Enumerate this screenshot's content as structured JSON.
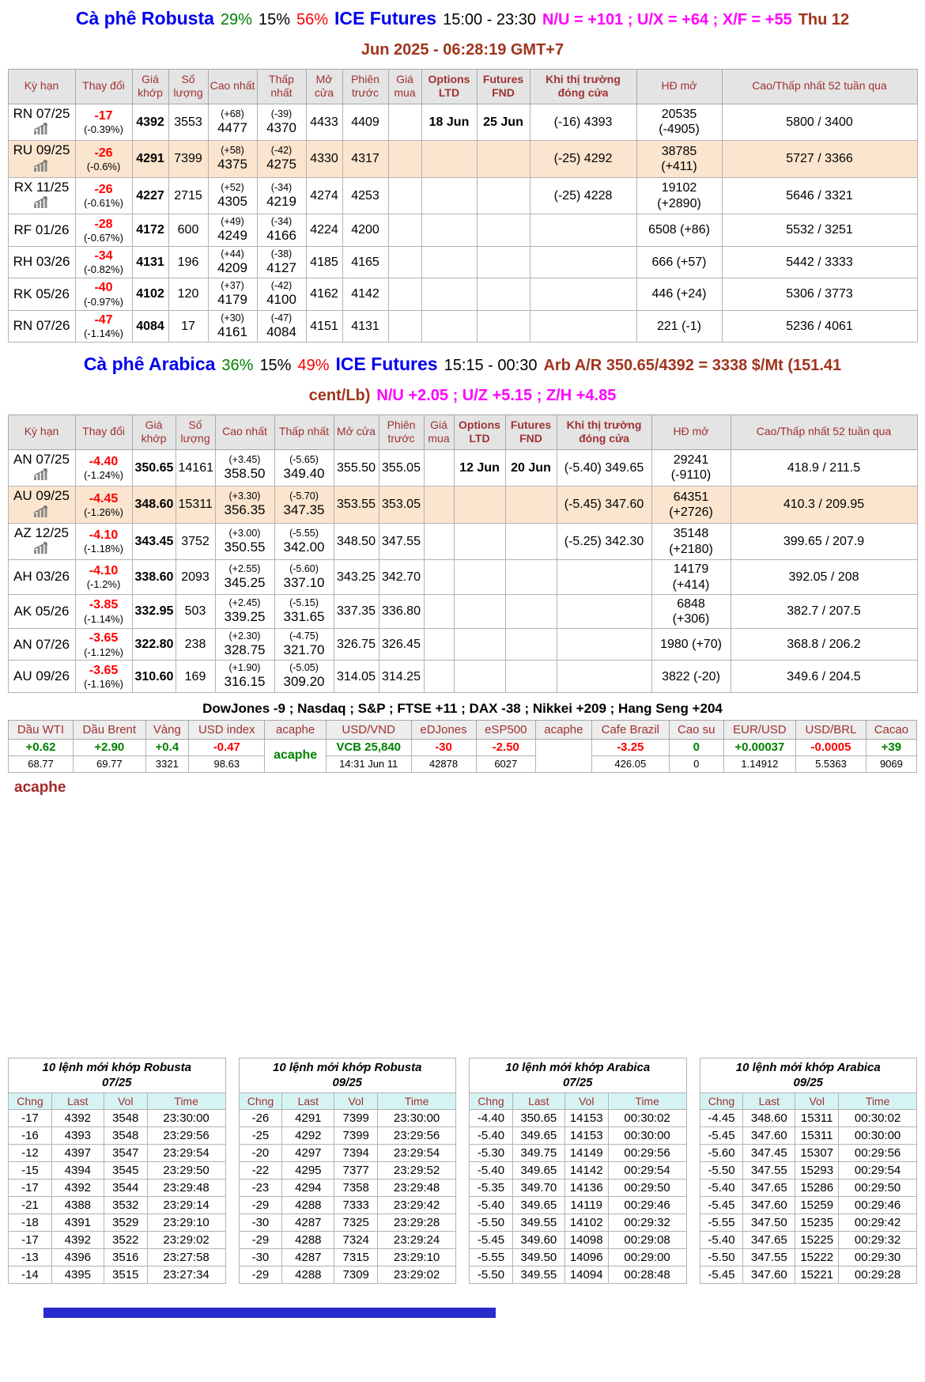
{
  "robusta_header": {
    "line1": [
      {
        "text": "Cà phê Robusta",
        "style": "blue"
      },
      {
        "text": "29%",
        "style": "green"
      },
      {
        "text": "15%",
        "style": "black"
      },
      {
        "text": "56%",
        "style": "red"
      },
      {
        "text": "ICE Futures",
        "style": "blue"
      },
      {
        "text": "15:00 - 23:30",
        "style": "black"
      },
      {
        "text": "N/U = +101 ; U/X = +64 ; X/F = +55",
        "style": "magenta"
      },
      {
        "text": "Thu 12",
        "style": "darkred"
      }
    ],
    "line2": [
      {
        "text": "Jun 2025 - 06:28:19 GMT+7",
        "style": "darkred"
      }
    ]
  },
  "arabica_header": {
    "line1": [
      {
        "text": "Cà phê Arabica",
        "style": "blue"
      },
      {
        "text": "36%",
        "style": "green"
      },
      {
        "text": "15%",
        "style": "black"
      },
      {
        "text": "49%",
        "style": "red"
      },
      {
        "text": "ICE Futures",
        "style": "blue"
      },
      {
        "text": "15:15 - 00:30",
        "style": "black"
      },
      {
        "text": "Arb A/R 350.65/4392 = 3338 $/Mt (151.41",
        "style": "darkred"
      }
    ],
    "line2": [
      {
        "text": "cent/Lb)",
        "style": "darkred"
      },
      {
        "text": "N/U +2.05 ; U/Z +5.15 ; Z/H +4.85",
        "style": "magenta"
      }
    ]
  },
  "futures_columns": [
    {
      "label": "Kỳ hạn",
      "bold": false
    },
    {
      "label": "Thay đổi",
      "bold": false
    },
    {
      "label": "Giá khớp",
      "bold": false
    },
    {
      "label": "Số lượng",
      "bold": false
    },
    {
      "label": "Cao nhất",
      "bold": false
    },
    {
      "label": "Thấp nhất",
      "bold": false
    },
    {
      "label": "Mở cửa",
      "bold": false
    },
    {
      "label": "Phiên trước",
      "bold": false
    },
    {
      "label": "Giá mua",
      "bold": false
    },
    {
      "label": "Options LTD",
      "bold": true
    },
    {
      "label": "Futures FND",
      "bold": true
    },
    {
      "label": "Khi thị trường đóng cửa",
      "bold": true
    },
    {
      "label": "HĐ mở",
      "bold": false
    },
    {
      "label": "Cao/Thấp nhất 52 tuần qua",
      "bold": false
    }
  ],
  "robusta_col_widths": [
    85,
    72,
    46,
    50,
    62,
    62,
    46,
    58,
    42,
    70,
    67,
    135,
    108,
    247
  ],
  "arabica_col_widths": [
    85,
    72,
    55,
    50,
    75,
    75,
    57,
    57,
    38,
    65,
    65,
    120,
    100,
    236
  ],
  "robusta_rows": [
    {
      "contract": "RN 07/25",
      "icon": true,
      "chg": "-17",
      "pct": "(-0.39%)",
      "last": "4392",
      "vol": "3553",
      "hi_d": "(+68)",
      "hi": "4477",
      "lo_d": "(-39)",
      "lo": "4370",
      "open": "4433",
      "prev": "4409",
      "bid": "",
      "oltd": "18 Jun",
      "fnd": "25 Jun",
      "close": "(-16) 4393",
      "oi": "20535 (-4905)",
      "range": "5800 / 3400",
      "hl": false
    },
    {
      "contract": "RU 09/25",
      "icon": true,
      "chg": "-26",
      "pct": "(-0.6%)",
      "last": "4291",
      "vol": "7399",
      "hi_d": "(+58)",
      "hi": "4375",
      "lo_d": "(-42)",
      "lo": "4275",
      "open": "4330",
      "prev": "4317",
      "bid": "",
      "oltd": "",
      "fnd": "",
      "close": "(-25) 4292",
      "oi": "38785 (+411)",
      "range": "5727 / 3366",
      "hl": true
    },
    {
      "contract": "RX 11/25",
      "icon": true,
      "chg": "-26",
      "pct": "(-0.61%)",
      "last": "4227",
      "vol": "2715",
      "hi_d": "(+52)",
      "hi": "4305",
      "lo_d": "(-34)",
      "lo": "4219",
      "open": "4274",
      "prev": "4253",
      "bid": "",
      "oltd": "",
      "fnd": "",
      "close": "(-25) 4228",
      "oi": "19102 (+2890)",
      "range": "5646 / 3321",
      "hl": false
    },
    {
      "contract": "RF 01/26",
      "icon": false,
      "chg": "-28",
      "pct": "(-0.67%)",
      "last": "4172",
      "vol": "600",
      "hi_d": "(+49)",
      "hi": "4249",
      "lo_d": "(-34)",
      "lo": "4166",
      "open": "4224",
      "prev": "4200",
      "bid": "",
      "oltd": "",
      "fnd": "",
      "close": "",
      "oi": "6508 (+86)",
      "range": "5532 / 3251",
      "hl": false
    },
    {
      "contract": "RH 03/26",
      "icon": false,
      "chg": "-34",
      "pct": "(-0.82%)",
      "last": "4131",
      "vol": "196",
      "hi_d": "(+44)",
      "hi": "4209",
      "lo_d": "(-38)",
      "lo": "4127",
      "open": "4185",
      "prev": "4165",
      "bid": "",
      "oltd": "",
      "fnd": "",
      "close": "",
      "oi": "666 (+57)",
      "range": "5442 / 3333",
      "hl": false
    },
    {
      "contract": "RK 05/26",
      "icon": false,
      "chg": "-40",
      "pct": "(-0.97%)",
      "last": "4102",
      "vol": "120",
      "hi_d": "(+37)",
      "hi": "4179",
      "lo_d": "(-42)",
      "lo": "4100",
      "open": "4162",
      "prev": "4142",
      "bid": "",
      "oltd": "",
      "fnd": "",
      "close": "",
      "oi": "446 (+24)",
      "range": "5306 / 3773",
      "hl": false
    },
    {
      "contract": "RN 07/26",
      "icon": false,
      "chg": "-47",
      "pct": "(-1.14%)",
      "last": "4084",
      "vol": "17",
      "hi_d": "(+30)",
      "hi": "4161",
      "lo_d": "(-47)",
      "lo": "4084",
      "open": "4151",
      "prev": "4131",
      "bid": "",
      "oltd": "",
      "fnd": "",
      "close": "",
      "oi": "221 (-1)",
      "range": "5236 / 4061",
      "hl": false
    }
  ],
  "arabica_rows": [
    {
      "contract": "AN 07/25",
      "icon": true,
      "chg": "-4.40",
      "pct": "(-1.24%)",
      "last": "350.65",
      "vol": "14161",
      "hi_d": "(+3.45)",
      "hi": "358.50",
      "lo_d": "(-5.65)",
      "lo": "349.40",
      "open": "355.50",
      "prev": "355.05",
      "bid": "",
      "oltd": "12 Jun",
      "fnd": "20 Jun",
      "close": "(-5.40) 349.65",
      "oi": "29241 (-9110)",
      "range": "418.9 / 211.5",
      "hl": false
    },
    {
      "contract": "AU 09/25",
      "icon": true,
      "chg": "-4.45",
      "pct": "(-1.26%)",
      "last": "348.60",
      "vol": "15311",
      "hi_d": "(+3.30)",
      "hi": "356.35",
      "lo_d": "(-5.70)",
      "lo": "347.35",
      "open": "353.55",
      "prev": "353.05",
      "bid": "",
      "oltd": "",
      "fnd": "",
      "close": "(-5.45) 347.60",
      "oi": "64351 (+2726)",
      "range": "410.3 / 209.95",
      "hl": true
    },
    {
      "contract": "AZ 12/25",
      "icon": true,
      "chg": "-4.10",
      "pct": "(-1.18%)",
      "last": "343.45",
      "vol": "3752",
      "hi_d": "(+3.00)",
      "hi": "350.55",
      "lo_d": "(-5.55)",
      "lo": "342.00",
      "open": "348.50",
      "prev": "347.55",
      "bid": "",
      "oltd": "",
      "fnd": "",
      "close": "(-5.25) 342.30",
      "oi": "35148 (+2180)",
      "range": "399.65 / 207.9",
      "hl": false
    },
    {
      "contract": "AH 03/26",
      "icon": false,
      "chg": "-4.10",
      "pct": "(-1.2%)",
      "last": "338.60",
      "vol": "2093",
      "hi_d": "(+2.55)",
      "hi": "345.25",
      "lo_d": "(-5.60)",
      "lo": "337.10",
      "open": "343.25",
      "prev": "342.70",
      "bid": "",
      "oltd": "",
      "fnd": "",
      "close": "",
      "oi": "14179 (+414)",
      "range": "392.05 / 208",
      "hl": false
    },
    {
      "contract": "AK 05/26",
      "icon": false,
      "chg": "-3.85",
      "pct": "(-1.14%)",
      "last": "332.95",
      "vol": "503",
      "hi_d": "(+2.45)",
      "hi": "339.25",
      "lo_d": "(-5.15)",
      "lo": "331.65",
      "open": "337.35",
      "prev": "336.80",
      "bid": "",
      "oltd": "",
      "fnd": "",
      "close": "",
      "oi": "6848 (+306)",
      "range": "382.7 / 207.5",
      "hl": false
    },
    {
      "contract": "AN 07/26",
      "icon": false,
      "chg": "-3.65",
      "pct": "(-1.12%)",
      "last": "322.80",
      "vol": "238",
      "hi_d": "(+2.30)",
      "hi": "328.75",
      "lo_d": "(-4.75)",
      "lo": "321.70",
      "open": "326.75",
      "prev": "326.45",
      "bid": "",
      "oltd": "",
      "fnd": "",
      "close": "",
      "oi": "1980 (+70)",
      "range": "368.8 / 206.2",
      "hl": false
    },
    {
      "contract": "AU 09/26",
      "icon": false,
      "chg": "-3.65",
      "pct": "(-1.16%)",
      "last": "310.60",
      "vol": "169",
      "hi_d": "(+1.90)",
      "hi": "316.15",
      "lo_d": "(-5.05)",
      "lo": "309.20",
      "open": "314.05",
      "prev": "314.25",
      "bid": "",
      "oltd": "",
      "fnd": "",
      "close": "",
      "oi": "3822 (-20)",
      "range": "349.6 / 204.5",
      "hl": false
    }
  ],
  "indices_line": "DowJones -9 ; Nasdaq ; S&P ; FTSE +11 ; DAX -38 ; Nikkei +209 ; Hang Seng +204",
  "market": {
    "columns": [
      {
        "label": "Dầu WTI",
        "change": "+0.62",
        "color": "green",
        "value": "68.77"
      },
      {
        "label": "Dầu Brent",
        "change": "+2.90",
        "color": "green",
        "value": "69.77"
      },
      {
        "label": "Vàng",
        "change": "+0.4",
        "color": "green",
        "value": "3321"
      },
      {
        "label": "USD index",
        "change": "-0.47",
        "color": "red",
        "value": "98.63"
      },
      {
        "label": "acaphe",
        "change": "acaphe",
        "color": "green",
        "value": "",
        "merged": true
      },
      {
        "label": "USD/VND",
        "change": "VCB 25,840",
        "color": "green",
        "value": "14:31 Jun 11"
      },
      {
        "label": "eDJones",
        "change": "-30",
        "color": "red",
        "value": "42878"
      },
      {
        "label": "eSP500",
        "change": "-2.50",
        "color": "red",
        "value": "6027"
      },
      {
        "label": "acaphe",
        "change": "",
        "color": "green",
        "value": "",
        "merged": true
      },
      {
        "label": "Cafe Brazil",
        "change": "-3.25",
        "color": "red",
        "value": "426.05"
      },
      {
        "label": "Cao su",
        "change": "0",
        "color": "green",
        "value": "0"
      },
      {
        "label": "EUR/USD",
        "change": "+0.00037",
        "color": "green",
        "value": "1.14912"
      },
      {
        "label": "USD/BRL",
        "change": "-0.0005",
        "color": "red",
        "value": "5.5363"
      },
      {
        "label": "Cacao",
        "change": "+39",
        "color": "green",
        "value": "9069"
      }
    ]
  },
  "acaphe_label": "acaphe",
  "order_tables": [
    {
      "title": "10 lệnh mới khớp Robusta",
      "subtitle": "07/25",
      "columns": [
        "Chng",
        "Last",
        "Vol",
        "Time"
      ],
      "rows": [
        [
          "-17",
          "4392",
          "3548",
          "23:30:00"
        ],
        [
          "-16",
          "4393",
          "3548",
          "23:29:56"
        ],
        [
          "-12",
          "4397",
          "3547",
          "23:29:54"
        ],
        [
          "-15",
          "4394",
          "3545",
          "23:29:50"
        ],
        [
          "-17",
          "4392",
          "3544",
          "23:29:48"
        ],
        [
          "-21",
          "4388",
          "3532",
          "23:29:14"
        ],
        [
          "-18",
          "4391",
          "3529",
          "23:29:10"
        ],
        [
          "-17",
          "4392",
          "3522",
          "23:29:02"
        ],
        [
          "-13",
          "4396",
          "3516",
          "23:27:58"
        ],
        [
          "-14",
          "4395",
          "3515",
          "23:27:34"
        ]
      ]
    },
    {
      "title": "10 lệnh mới khớp Robusta",
      "subtitle": "09/25",
      "columns": [
        "Chng",
        "Last",
        "Vol",
        "Time"
      ],
      "rows": [
        [
          "-26",
          "4291",
          "7399",
          "23:30:00"
        ],
        [
          "-25",
          "4292",
          "7399",
          "23:29:56"
        ],
        [
          "-20",
          "4297",
          "7394",
          "23:29:54"
        ],
        [
          "-22",
          "4295",
          "7377",
          "23:29:52"
        ],
        [
          "-23",
          "4294",
          "7358",
          "23:29:48"
        ],
        [
          "-29",
          "4288",
          "7333",
          "23:29:42"
        ],
        [
          "-30",
          "4287",
          "7325",
          "23:29:28"
        ],
        [
          "-29",
          "4288",
          "7324",
          "23:29:24"
        ],
        [
          "-30",
          "4287",
          "7315",
          "23:29:10"
        ],
        [
          "-29",
          "4288",
          "7309",
          "23:29:02"
        ]
      ]
    },
    {
      "title": "10 lệnh mới khớp Arabica",
      "subtitle": "07/25",
      "columns": [
        "Chng",
        "Last",
        "Vol",
        "Time"
      ],
      "rows": [
        [
          "-4.40",
          "350.65",
          "14153",
          "00:30:02"
        ],
        [
          "-5.40",
          "349.65",
          "14153",
          "00:30:00"
        ],
        [
          "-5.30",
          "349.75",
          "14149",
          "00:29:56"
        ],
        [
          "-5.40",
          "349.65",
          "14142",
          "00:29:54"
        ],
        [
          "-5.35",
          "349.70",
          "14136",
          "00:29:50"
        ],
        [
          "-5.40",
          "349.65",
          "14119",
          "00:29:46"
        ],
        [
          "-5.50",
          "349.55",
          "14102",
          "00:29:32"
        ],
        [
          "-5.45",
          "349.60",
          "14098",
          "00:29:08"
        ],
        [
          "-5.55",
          "349.50",
          "14096",
          "00:29:00"
        ],
        [
          "-5.50",
          "349.55",
          "14094",
          "00:28:48"
        ]
      ]
    },
    {
      "title": "10 lệnh mới khớp Arabica",
      "subtitle": "09/25",
      "columns": [
        "Chng",
        "Last",
        "Vol",
        "Time"
      ],
      "rows": [
        [
          "-4.45",
          "348.60",
          "15311",
          "00:30:02"
        ],
        [
          "-5.45",
          "347.60",
          "15311",
          "00:30:00"
        ],
        [
          "-5.60",
          "347.45",
          "15307",
          "00:29:56"
        ],
        [
          "-5.50",
          "347.55",
          "15293",
          "00:29:54"
        ],
        [
          "-5.40",
          "347.65",
          "15286",
          "00:29:50"
        ],
        [
          "-5.45",
          "347.60",
          "15259",
          "00:29:46"
        ],
        [
          "-5.55",
          "347.50",
          "15235",
          "00:29:42"
        ],
        [
          "-5.40",
          "347.65",
          "15225",
          "00:29:32"
        ],
        [
          "-5.50",
          "347.55",
          "15222",
          "00:29:30"
        ],
        [
          "-5.45",
          "347.60",
          "15221",
          "00:29:28"
        ]
      ]
    }
  ]
}
